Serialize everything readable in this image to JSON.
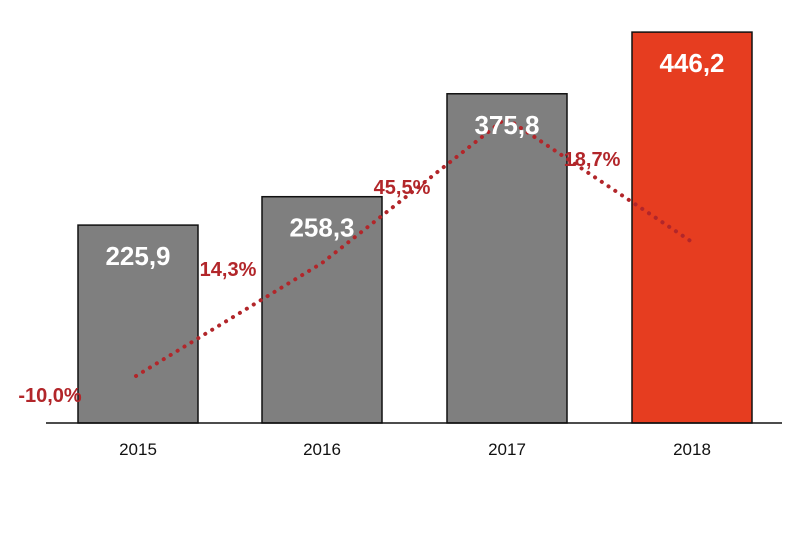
{
  "chart_data": {
    "type": "bar",
    "categories": [
      "2015",
      "2016",
      "2017",
      "2018"
    ],
    "values": [
      225.9,
      258.3,
      375.8,
      446.2
    ],
    "value_labels": [
      "225,9",
      "258,3",
      "375,8",
      "446,2"
    ],
    "growth_line": {
      "type": "line",
      "style": "dotted",
      "values": [
        -10.0,
        14.3,
        45.5,
        18.7
      ],
      "labels": [
        "-10,0%",
        "14,3%",
        "45,5%",
        "18,7%"
      ]
    },
    "title": "",
    "xlabel": "",
    "ylabel": "",
    "ylim": [
      0,
      460
    ],
    "grid": false,
    "legend": "none"
  },
  "colors": {
    "bar_default": "#7f7f7f",
    "bar_highlight": "#e63d20",
    "growth": "#b2262a",
    "axis": "#111111"
  }
}
